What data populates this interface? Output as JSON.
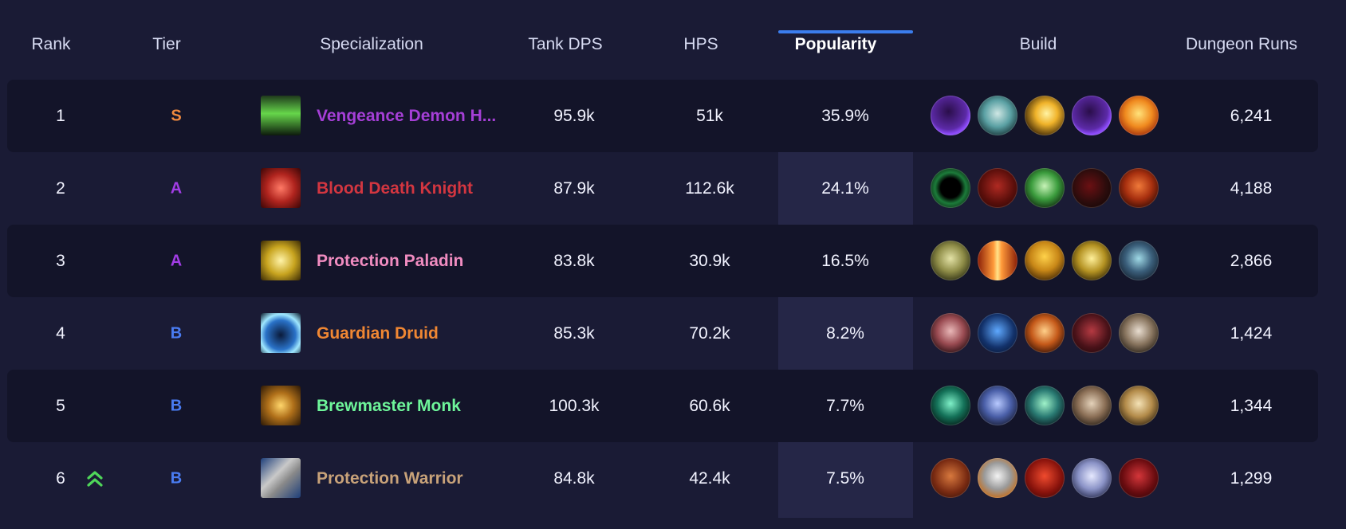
{
  "columns": {
    "rank": "Rank",
    "tier": "Tier",
    "specialization": "Specialization",
    "tank_dps": "Tank DPS",
    "hps": "HPS",
    "popularity": "Popularity",
    "build": "Build",
    "dungeon_runs": "Dungeon Runs"
  },
  "colors": {
    "tier_S": "#f08a3e",
    "tier_A": "#a23de6",
    "tier_B": "#4a7cf2",
    "sort_indicator": "#3b7ded"
  },
  "rows": [
    {
      "rank": "1",
      "tier": "S",
      "spec": "Vengeance Demon Hunter",
      "spec_display": "Vengeance Demon H...",
      "spec_color": "#a53fd6",
      "spec_icon": "vengeance-demon-hunter-icon",
      "tank_dps": "95.9k",
      "hps": "51k",
      "popularity": "35.9%",
      "dungeon_runs": "6,241",
      "trend": ""
    },
    {
      "rank": "2",
      "tier": "A",
      "spec": "Blood Death Knight",
      "spec_display": "Blood Death Knight",
      "spec_color": "#d33640",
      "spec_icon": "blood-death-knight-icon",
      "tank_dps": "87.9k",
      "hps": "112.6k",
      "popularity": "24.1%",
      "dungeon_runs": "4,188",
      "trend": ""
    },
    {
      "rank": "3",
      "tier": "A",
      "spec": "Protection Paladin",
      "spec_display": "Protection Paladin",
      "spec_color": "#f08cc0",
      "spec_icon": "protection-paladin-icon",
      "tank_dps": "83.8k",
      "hps": "30.9k",
      "popularity": "16.5%",
      "dungeon_runs": "2,866",
      "trend": ""
    },
    {
      "rank": "4",
      "tier": "B",
      "spec": "Guardian Druid",
      "spec_display": "Guardian Druid",
      "spec_color": "#f08733",
      "spec_icon": "guardian-druid-icon",
      "tank_dps": "85.3k",
      "hps": "70.2k",
      "popularity": "8.2%",
      "dungeon_runs": "1,424",
      "trend": ""
    },
    {
      "rank": "5",
      "tier": "B",
      "spec": "Brewmaster Monk",
      "spec_display": "Brewmaster Monk",
      "spec_color": "#6ef59a",
      "spec_icon": "brewmaster-monk-icon",
      "tank_dps": "100.3k",
      "hps": "60.6k",
      "popularity": "7.7%",
      "dungeon_runs": "1,344",
      "trend": ""
    },
    {
      "rank": "6",
      "tier": "B",
      "spec": "Protection Warrior",
      "spec_display": "Protection Warrior",
      "spec_color": "#c8a279",
      "spec_icon": "protection-warrior-icon",
      "tank_dps": "84.8k",
      "hps": "42.4k",
      "popularity": "7.5%",
      "dungeon_runs": "1,299",
      "trend": "rising"
    }
  ]
}
